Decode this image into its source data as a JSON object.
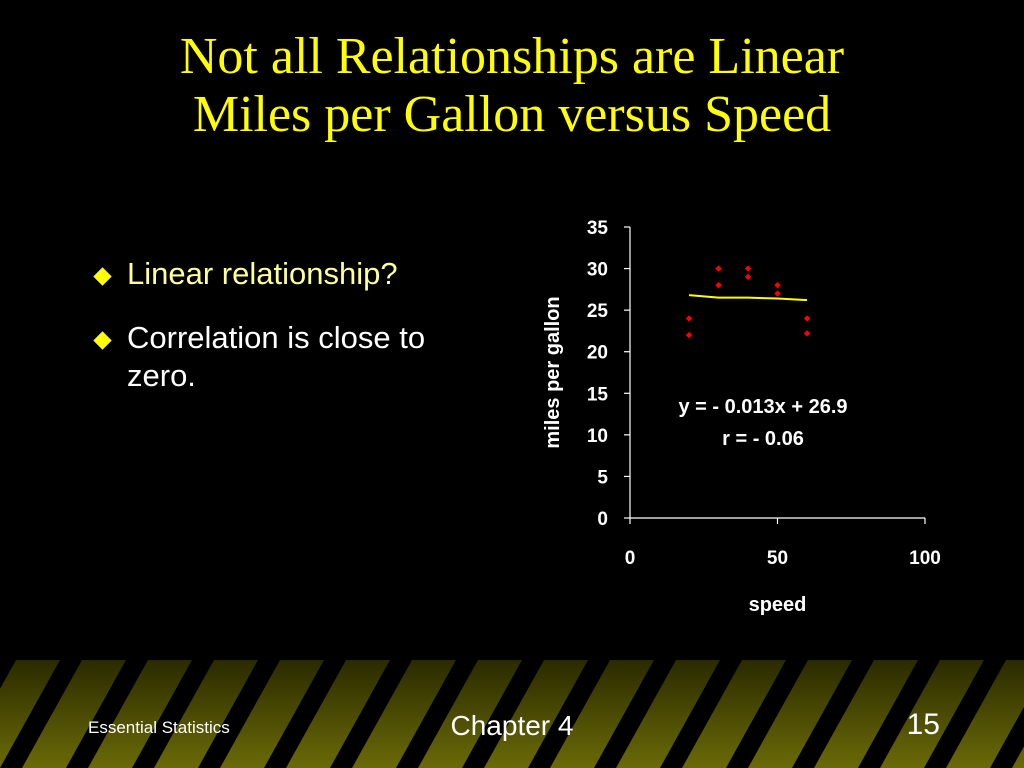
{
  "slide": {
    "title_line1": "Not all Relationships are Linear",
    "title_line2": "Miles per Gallon versus Speed",
    "bullets": [
      {
        "text": "Linear relationship?",
        "color": "#FFFF99"
      },
      {
        "text": "Correlation is close to zero.",
        "color": "#FFFFFF"
      }
    ]
  },
  "footer": {
    "left": "Essential Statistics",
    "center": "Chapter 4",
    "right": "15"
  },
  "colors": {
    "title": "#FFFF00",
    "points": "#FF0000",
    "trendline": "#FFFF00",
    "axis": "#FFFFFF"
  },
  "chart_data": {
    "type": "scatter",
    "xlabel": "speed",
    "ylabel": "miles per gallon",
    "xlim": [
      0,
      100
    ],
    "ylim": [
      0,
      35
    ],
    "xticks": [
      0,
      50,
      100
    ],
    "yticks": [
      0,
      5,
      10,
      15,
      20,
      25,
      30,
      35
    ],
    "grid": false,
    "points": [
      {
        "x": 20,
        "y": 24
      },
      {
        "x": 20,
        "y": 22
      },
      {
        "x": 30,
        "y": 30
      },
      {
        "x": 30,
        "y": 28
      },
      {
        "x": 40,
        "y": 30
      },
      {
        "x": 40,
        "y": 29
      },
      {
        "x": 50,
        "y": 28
      },
      {
        "x": 50,
        "y": 27
      },
      {
        "x": 60,
        "y": 24
      },
      {
        "x": 60,
        "y": 22.2
      }
    ],
    "trendline": {
      "x": [
        20,
        30,
        40,
        50,
        60
      ],
      "y": [
        26.8,
        26.5,
        26.5,
        26.4,
        26.2
      ]
    },
    "annotations": [
      "y = - 0.013x + 26.9",
      "r = - 0.06"
    ]
  }
}
